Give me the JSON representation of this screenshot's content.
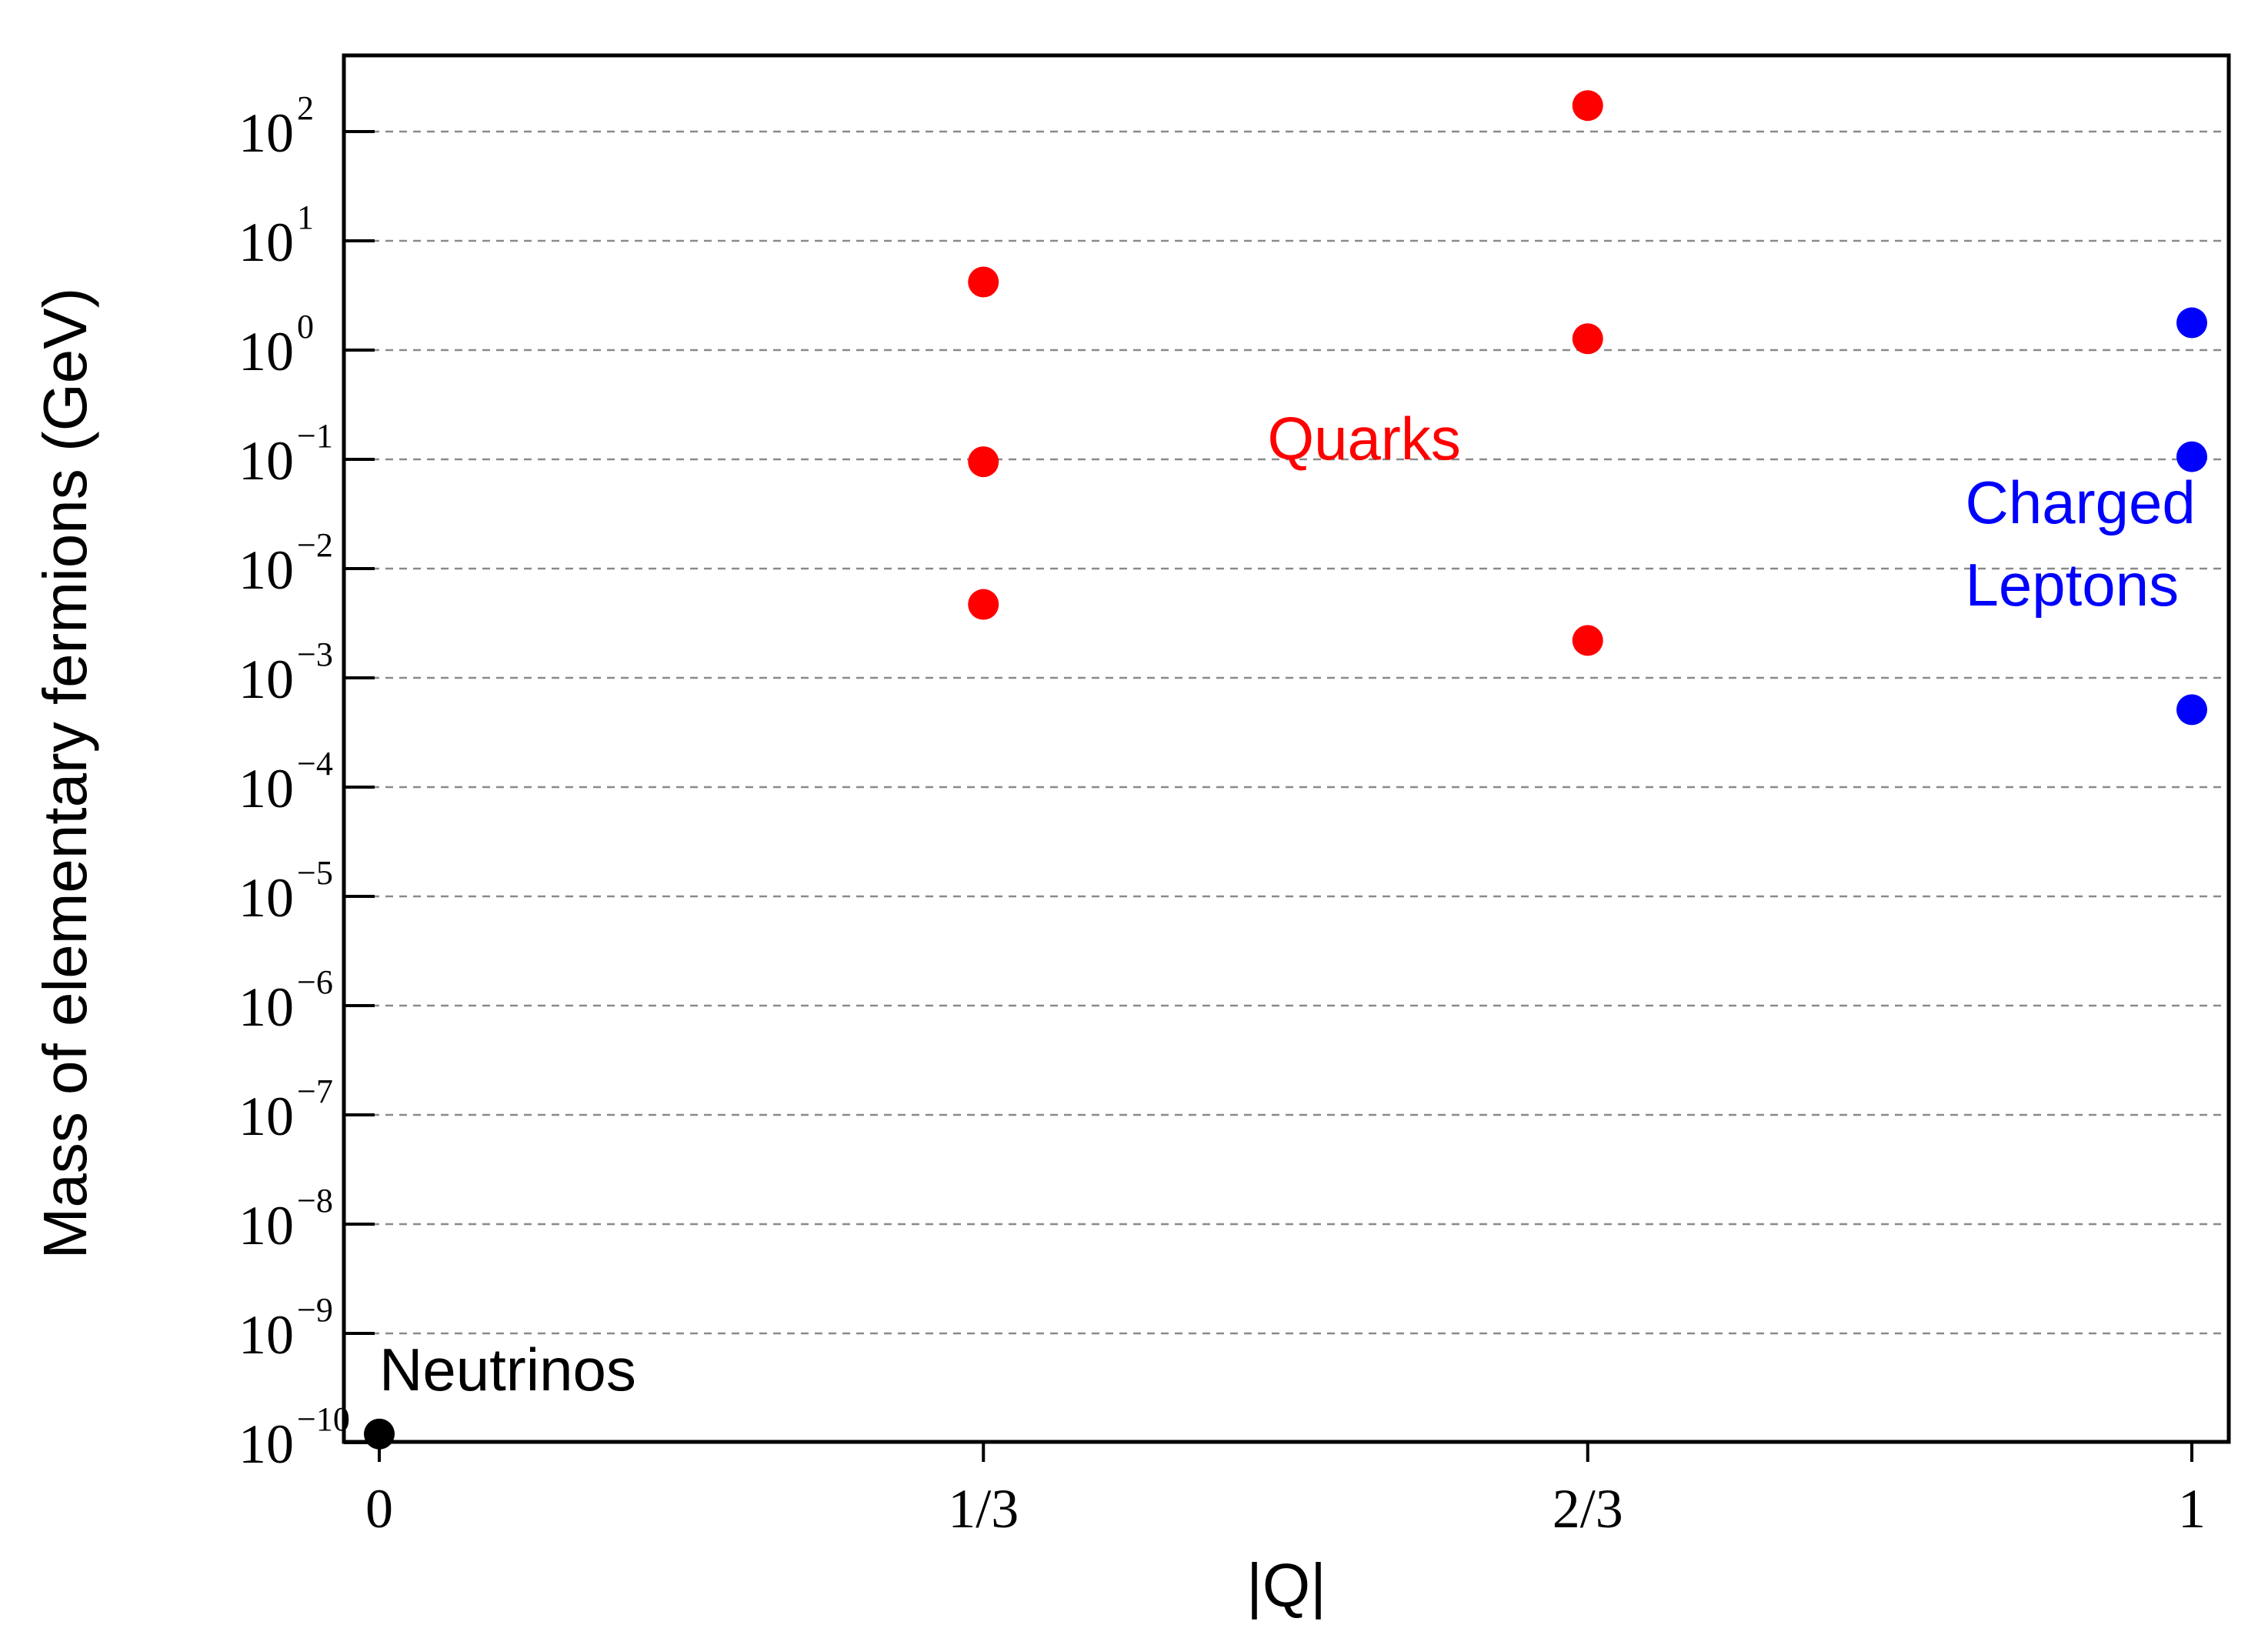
{
  "chart_data": {
    "type": "scatter",
    "title": "",
    "xlabel": "|Q|",
    "ylabel": "Mass of elementary fermions (GeV)",
    "x_ticks": [
      {
        "value": 0,
        "label": "0"
      },
      {
        "value": 0.3333,
        "label": "1/3"
      },
      {
        "value": 0.6667,
        "label": "2/3"
      },
      {
        "value": 1,
        "label": "1"
      }
    ],
    "y_scale": "log",
    "y_ticks": [
      {
        "exp": 2,
        "base": "10",
        "sup": "2"
      },
      {
        "exp": 1,
        "base": "10",
        "sup": "1"
      },
      {
        "exp": 0,
        "base": "10",
        "sup": "0"
      },
      {
        "exp": -1,
        "base": "10",
        "sup": "−1"
      },
      {
        "exp": -2,
        "base": "10",
        "sup": "−2"
      },
      {
        "exp": -3,
        "base": "10",
        "sup": "−3"
      },
      {
        "exp": -4,
        "base": "10",
        "sup": "−4"
      },
      {
        "exp": -5,
        "base": "10",
        "sup": "−5"
      },
      {
        "exp": -6,
        "base": "10",
        "sup": "−6"
      },
      {
        "exp": -7,
        "base": "10",
        "sup": "−7"
      },
      {
        "exp": -8,
        "base": "10",
        "sup": "−8"
      },
      {
        "exp": -9,
        "base": "10",
        "sup": "−9"
      },
      {
        "exp": -10,
        "base": "10",
        "sup": "−10"
      }
    ],
    "xlim": [
      0,
      1
    ],
    "ylim": [
      1e-10,
      1000
    ],
    "grid": "horizontal dashed",
    "series": [
      {
        "name": "Quarks",
        "color": "#ff0000",
        "points": [
          {
            "x": 0.3333,
            "y": 4.2
          },
          {
            "x": 0.3333,
            "y": 0.095
          },
          {
            "x": 0.3333,
            "y": 0.0047
          },
          {
            "x": 0.6667,
            "y": 173
          },
          {
            "x": 0.6667,
            "y": 1.27
          },
          {
            "x": 0.6667,
            "y": 0.0022
          }
        ]
      },
      {
        "name": "Charged Leptons",
        "color": "#0000ff",
        "points": [
          {
            "x": 1,
            "y": 1.777
          },
          {
            "x": 1,
            "y": 0.1057
          },
          {
            "x": 1,
            "y": 0.000511
          }
        ]
      },
      {
        "name": "Neutrinos",
        "color": "#000000",
        "points": [
          {
            "x": 0,
            "y": 1.2e-10
          }
        ]
      }
    ],
    "annotations": [
      {
        "text": "Quarks",
        "color": "#ff0000",
        "x": 0.49,
        "y": 0.1
      },
      {
        "text": "Charged",
        "color": "#0000ff",
        "x": 0.875,
        "y": 0.026
      },
      {
        "text": "Leptons",
        "color": "#0000ff",
        "x": 0.875,
        "y": 0.0046
      },
      {
        "text": "Neutrinos",
        "color": "#000000",
        "x": 0.0,
        "y": 3e-10
      }
    ]
  }
}
